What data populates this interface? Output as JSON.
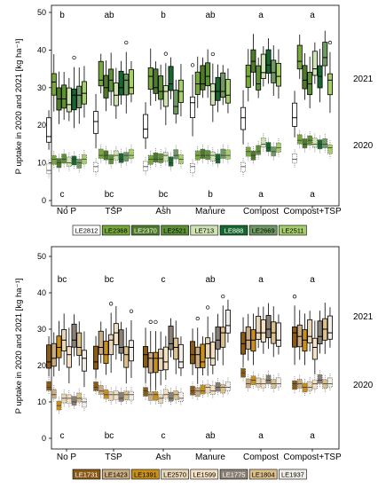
{
  "y_label": "P uptake in 2020 and 2021 [kg ha⁻¹]",
  "colors": {
    "top": [
      "#ffffff",
      "#76a83a",
      "#4e7a2a",
      "#5d9135",
      "#cfe3b3",
      "#17672f",
      "#6f9a63",
      "#a6cf6b"
    ],
    "bottom": [
      "#8a5a17",
      "#c9ac81",
      "#c9901c",
      "#e9d6b6",
      "#f4e0c3",
      "#8a8176",
      "#dcc08a",
      "#f1ede8"
    ]
  },
  "chart_data": [
    {
      "type": "box",
      "categories": [
        "No P",
        "TSP",
        "Ash",
        "Manure",
        "Compost",
        "Compost+TSP"
      ],
      "ylim": [
        0,
        50
      ],
      "yticks": [
        0,
        10,
        20,
        30,
        40,
        50
      ],
      "grid": false,
      "legend_position": "bottom",
      "series_names": [
        "LE2812",
        "LE2368",
        "LE2370",
        "LE2521",
        "LE713",
        "LE888",
        "LE2669",
        "LE2511"
      ],
      "year_labels": [
        "2021",
        "2020"
      ],
      "letters_2021": [
        "b",
        "ab",
        "b",
        "ab",
        "a",
        "a"
      ],
      "letters_2020": [
        "c",
        "bc",
        "bc",
        "b",
        "a",
        "a"
      ],
      "medians_2021": [
        [
          17,
          31.5,
          27,
          27,
          25.5,
          28,
          28,
          28.5
        ],
        [
          21,
          32,
          30,
          32,
          28,
          30,
          32,
          30
        ],
        [
          19,
          33,
          30,
          29,
          29,
          31,
          25,
          29
        ],
        [
          26,
          31,
          31,
          33,
          29,
          29,
          29,
          28
        ],
        [
          22,
          33,
          37,
          31,
          34,
          36,
          34,
          33
        ],
        [
          22,
          37,
          32,
          31,
          35,
          33,
          38,
          32
        ]
      ],
      "medians_2020": [
        [
          8,
          11,
          10,
          11,
          10,
          11,
          10,
          11
        ],
        [
          9,
          12,
          12,
          11,
          12,
          11,
          12,
          12
        ],
        [
          9,
          11,
          11,
          11,
          12,
          10,
          12,
          11
        ],
        [
          9,
          12,
          12,
          12,
          12,
          11,
          12,
          12
        ],
        [
          9,
          13,
          12,
          13,
          15,
          14,
          13,
          14
        ],
        [
          11,
          16,
          15,
          16,
          15,
          15,
          15,
          14
        ]
      ]
    },
    {
      "type": "box",
      "categories": [
        "No P",
        "TSP",
        "Ash",
        "Manure",
        "Compost",
        "Compost+TSP"
      ],
      "ylim": [
        0,
        50
      ],
      "yticks": [
        0,
        10,
        20,
        30,
        40,
        50
      ],
      "grid": false,
      "legend_position": "bottom",
      "series_names": [
        "LE1731",
        "LE1423",
        "LE1391",
        "LE2570",
        "LE1599",
        "LE1775",
        "LE1804",
        "LE1937"
      ],
      "year_labels": [
        "2021",
        "2020"
      ],
      "letters_2021": [
        "bc",
        "bc",
        "c",
        "ab",
        "a",
        "a"
      ],
      "letters_2020": [
        "c",
        "bc",
        "c",
        "ab",
        "a",
        "a"
      ],
      "medians_2021": [
        [
          21,
          22,
          25,
          27,
          23,
          27,
          25,
          22
        ],
        [
          21,
          25,
          23,
          27,
          29,
          25,
          23,
          25
        ],
        [
          23,
          22,
          22,
          22,
          21,
          26,
          25,
          21
        ],
        [
          23,
          23,
          21,
          26,
          22,
          27,
          29,
          31
        ],
        [
          26,
          27,
          27,
          29,
          29,
          30,
          29,
          27
        ],
        [
          29,
          28,
          27,
          28,
          25,
          28,
          30,
          29
        ]
      ],
      "medians_2020": [
        [
          14,
          12,
          9,
          11,
          11,
          10,
          11,
          10
        ],
        [
          14,
          13,
          12,
          12,
          12,
          11,
          12,
          12
        ],
        [
          13,
          12,
          12,
          11,
          12,
          11,
          12,
          11
        ],
        [
          13,
          13,
          13,
          14,
          13,
          14,
          14,
          14
        ],
        [
          18,
          15,
          16,
          15,
          15,
          16,
          15,
          15
        ],
        [
          15,
          15,
          14,
          14,
          15,
          16,
          15,
          15
        ]
      ]
    }
  ]
}
